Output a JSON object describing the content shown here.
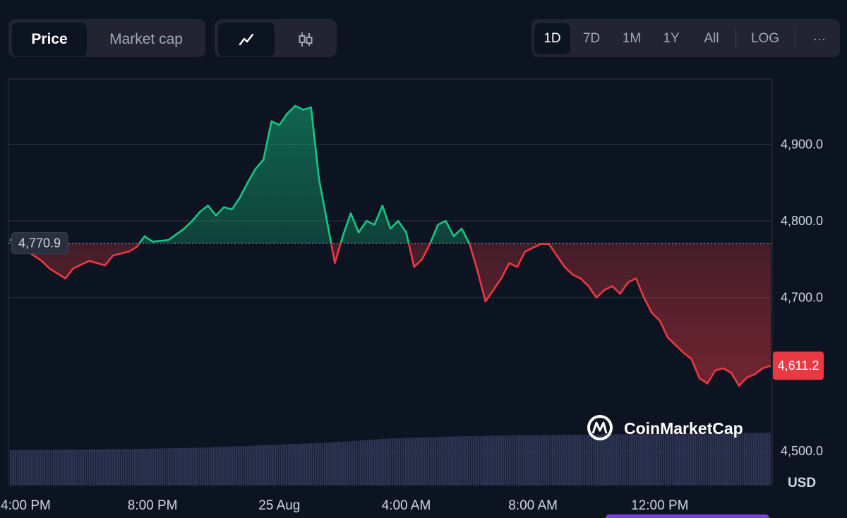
{
  "toolbar": {
    "tabs": [
      {
        "label": "Price",
        "active": true
      },
      {
        "label": "Market cap",
        "active": false
      }
    ],
    "chart_types": [
      {
        "icon": "line-chart-icon",
        "active": true
      },
      {
        "icon": "candlestick-icon",
        "active": false
      }
    ],
    "ranges": [
      {
        "label": "1D",
        "active": true
      },
      {
        "label": "7D",
        "active": false
      },
      {
        "label": "1M",
        "active": false
      },
      {
        "label": "1Y",
        "active": false
      },
      {
        "label": "All",
        "active": false
      },
      {
        "label": "LOG",
        "active": false
      }
    ],
    "more_label": "···"
  },
  "watermark": "CoinMarketCap",
  "colors": {
    "background": "#0d1421",
    "up": "#16c784",
    "down": "#ea3943",
    "volume": "#2e3452",
    "grid": "#2b3140"
  },
  "chart_data": {
    "type": "line",
    "title": "",
    "xlabel": "",
    "ylabel": "USD",
    "unit": "USD",
    "reference_price": 4770.9,
    "reference_label": "4,770.9",
    "current_price": 4611.2,
    "current_label": "4,611.2",
    "ylim": [
      4455,
      4985
    ],
    "y_ticks": [
      {
        "value": 4900,
        "label": "4,900.0"
      },
      {
        "value": 4800,
        "label": "4,800.0"
      },
      {
        "value": 4700,
        "label": "4,700.0"
      },
      {
        "value": 4500,
        "label": "4,500.0"
      }
    ],
    "x_labels": [
      {
        "hours": 0.5,
        "label": "4:00 PM"
      },
      {
        "hours": 4.5,
        "label": "8:00 PM"
      },
      {
        "hours": 8.5,
        "label": "25 Aug"
      },
      {
        "hours": 12.5,
        "label": "4:00 AM"
      },
      {
        "hours": 16.5,
        "label": "8:00 AM"
      },
      {
        "hours": 20.5,
        "label": "12:00 PM"
      }
    ],
    "series": [
      {
        "x_hours": [
          0,
          1,
          1.25,
          1.75,
          2,
          2.5,
          3,
          3.25,
          3.75,
          4,
          4.25,
          4.5,
          5,
          5.5,
          5.75,
          6,
          6.25,
          6.5,
          6.75,
          7,
          7.25,
          7.5,
          7.75,
          8,
          8.25,
          8.5,
          8.75,
          9,
          9.25,
          9.5,
          9.75,
          10,
          10.25,
          10.5,
          10.75,
          11,
          11.25,
          11.5,
          11.75,
          12,
          12.25,
          12.5,
          12.75,
          13,
          13.25,
          13.5,
          13.75,
          14,
          14.25,
          14.5,
          14.75,
          15,
          15.25,
          15.5,
          15.75,
          16,
          16.25,
          16.5,
          16.75,
          17,
          17.25,
          17.5,
          17.75,
          18,
          18.25,
          18.5,
          18.75,
          19,
          19.25,
          19.5,
          19.75,
          20,
          20.25,
          20.5,
          20.75,
          21,
          21.25,
          21.5,
          21.75,
          22,
          22.25,
          22.5,
          22.75,
          23,
          23.25,
          23.5,
          23.75,
          24
        ],
        "y_prices": [
          4776,
          4748,
          4738,
          4725,
          4738,
          4748,
          4742,
          4755,
          4760,
          4766,
          4780,
          4773,
          4775,
          4790,
          4800,
          4812,
          4820,
          4807,
          4818,
          4815,
          4830,
          4850,
          4868,
          4880,
          4930,
          4925,
          4940,
          4950,
          4945,
          4948,
          4855,
          4800,
          4745,
          4780,
          4810,
          4785,
          4800,
          4795,
          4820,
          4790,
          4800,
          4785,
          4740,
          4750,
          4770,
          4795,
          4800,
          4780,
          4790,
          4770,
          4735,
          4695,
          4710,
          4725,
          4745,
          4740,
          4760,
          4765,
          4770,
          4770,
          4755,
          4740,
          4730,
          4725,
          4715,
          4700,
          4710,
          4715,
          4705,
          4720,
          4725,
          4700,
          4680,
          4670,
          4648,
          4638,
          4628,
          4620,
          4595,
          4588,
          4605,
          4608,
          4602,
          4585,
          4596,
          4600,
          4608,
          4611.2
        ]
      }
    ],
    "volume": {
      "x_hours": [
        0,
        2,
        4,
        6,
        8,
        10,
        12,
        14,
        16,
        18,
        20,
        22,
        24
      ],
      "values": [
        0.57,
        0.58,
        0.59,
        0.61,
        0.65,
        0.69,
        0.76,
        0.79,
        0.81,
        0.82,
        0.83,
        0.84,
        0.85
      ]
    },
    "grid": true,
    "legend": "none"
  }
}
